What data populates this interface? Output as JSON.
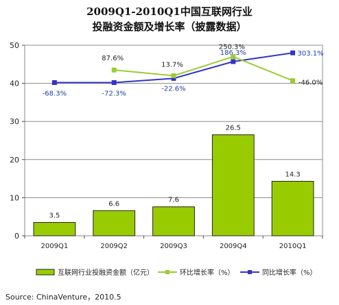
{
  "title_line1": "2009Q1-2010Q1中国互联网行业",
  "title_line2": "投融资金额及增长率（披露数据）",
  "source": "Source: ChinaVenture，2010.5",
  "legend": {
    "bar": "互联网行业投融资金额（亿元）",
    "qoq": "环比增长率（%）",
    "yoy": "同比增长率（%）"
  },
  "colors": {
    "bar_fill": "#99cc00",
    "bar_stroke": "#222222",
    "qoq_line": "#99cc33",
    "yoy_line": "#3333cc",
    "yoy_label": "#1f3fa8"
  },
  "chart_data": {
    "type": "bar",
    "categories": [
      "2009Q1",
      "2009Q2",
      "2009Q3",
      "2009Q4",
      "2010Q1"
    ],
    "ylim": [
      0,
      50
    ],
    "yticks": [
      0,
      10,
      20,
      30,
      40,
      50
    ],
    "grid": true,
    "legend_position": "bottom",
    "series": [
      {
        "name": "互联网行业投融资金额（亿元）",
        "kind": "bar",
        "values": [
          3.5,
          6.6,
          7.6,
          26.5,
          14.3
        ],
        "labels": [
          "3.5",
          "6.6",
          "7.6",
          "26.5",
          "14.3"
        ]
      },
      {
        "name": "环比增长率（%）",
        "kind": "line",
        "plotted_at": [
          null,
          43.5,
          42,
          47,
          40.7
        ],
        "labels": [
          null,
          "87.6%",
          "13.7%",
          "250.3%",
          "-46.0%"
        ]
      },
      {
        "name": "同比增长率（%）",
        "kind": "line",
        "plotted_at": [
          40.2,
          40.2,
          41.3,
          45.7,
          48
        ],
        "labels": [
          "-68.3%",
          "-72.3%",
          "-22.6%",
          "186.3%",
          "303.1%"
        ]
      }
    ]
  }
}
